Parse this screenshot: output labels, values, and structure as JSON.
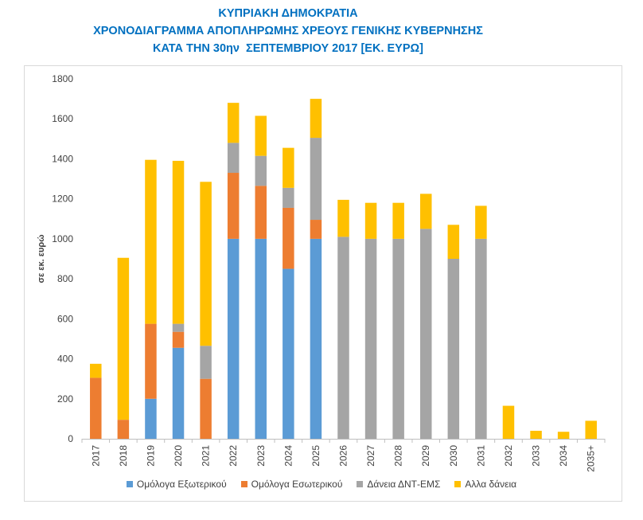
{
  "header": {
    "line1": "ΚΥΠΡΙΑΚΗ ΔΗΜΟΚΡΑΤΙΑ",
    "line2": "ΧΡΟΝΟΔΙΑΓΡΑΜΜΑ ΑΠΟΠΛΗΡΩΜΗΣ ΧΡΕΟΥΣ ΓΕΝΙΚΗΣ ΚΥΒΕΡΝΗΣΗΣ",
    "line3": "ΚΑΤΑ ΤΗΝ 30ην  ΣΕΠΤΕΜΒΡΙΟΥ 2017 [ΕΚ. ΕΥΡΩ]"
  },
  "chart_data": {
    "type": "bar",
    "stacked": true,
    "title": "",
    "xlabel": "",
    "ylabel": "σε εκ. ευρώ",
    "ylim": [
      0,
      1800
    ],
    "yticks": [
      0,
      200,
      400,
      600,
      800,
      1000,
      1200,
      1400,
      1600,
      1800
    ],
    "grid": false,
    "legend_position": "bottom",
    "categories": [
      "2017",
      "2018",
      "2019",
      "2020",
      "2021",
      "2022",
      "2023",
      "2024",
      "2025",
      "2026",
      "2027",
      "2028",
      "2029",
      "2030",
      "2031",
      "2032",
      "2033",
      "2034",
      "2035+"
    ],
    "series": [
      {
        "name": "Ομόλογα Εξωτερικού",
        "color": "#5b9bd5",
        "values": [
          0,
          0,
          200,
          455,
          0,
          1000,
          1000,
          850,
          1000,
          0,
          0,
          0,
          0,
          0,
          0,
          0,
          0,
          0,
          0
        ]
      },
      {
        "name": "Ομόλογα Εσωτερικού",
        "color": "#ed7d31",
        "values": [
          305,
          95,
          375,
          80,
          300,
          330,
          265,
          305,
          95,
          0,
          0,
          0,
          0,
          0,
          0,
          0,
          0,
          0,
          0
        ]
      },
      {
        "name": "Δάνεια ΔΝΤ-ΕΜΣ",
        "color": "#a5a5a5",
        "values": [
          0,
          0,
          0,
          40,
          165,
          150,
          150,
          100,
          410,
          1010,
          1000,
          1000,
          1050,
          900,
          1000,
          0,
          0,
          0,
          0
        ]
      },
      {
        "name": "Αλλα δάνεια",
        "color": "#ffc000",
        "values": [
          70,
          810,
          820,
          815,
          820,
          200,
          200,
          200,
          195,
          185,
          180,
          180,
          175,
          170,
          165,
          165,
          40,
          35,
          90
        ]
      }
    ]
  }
}
